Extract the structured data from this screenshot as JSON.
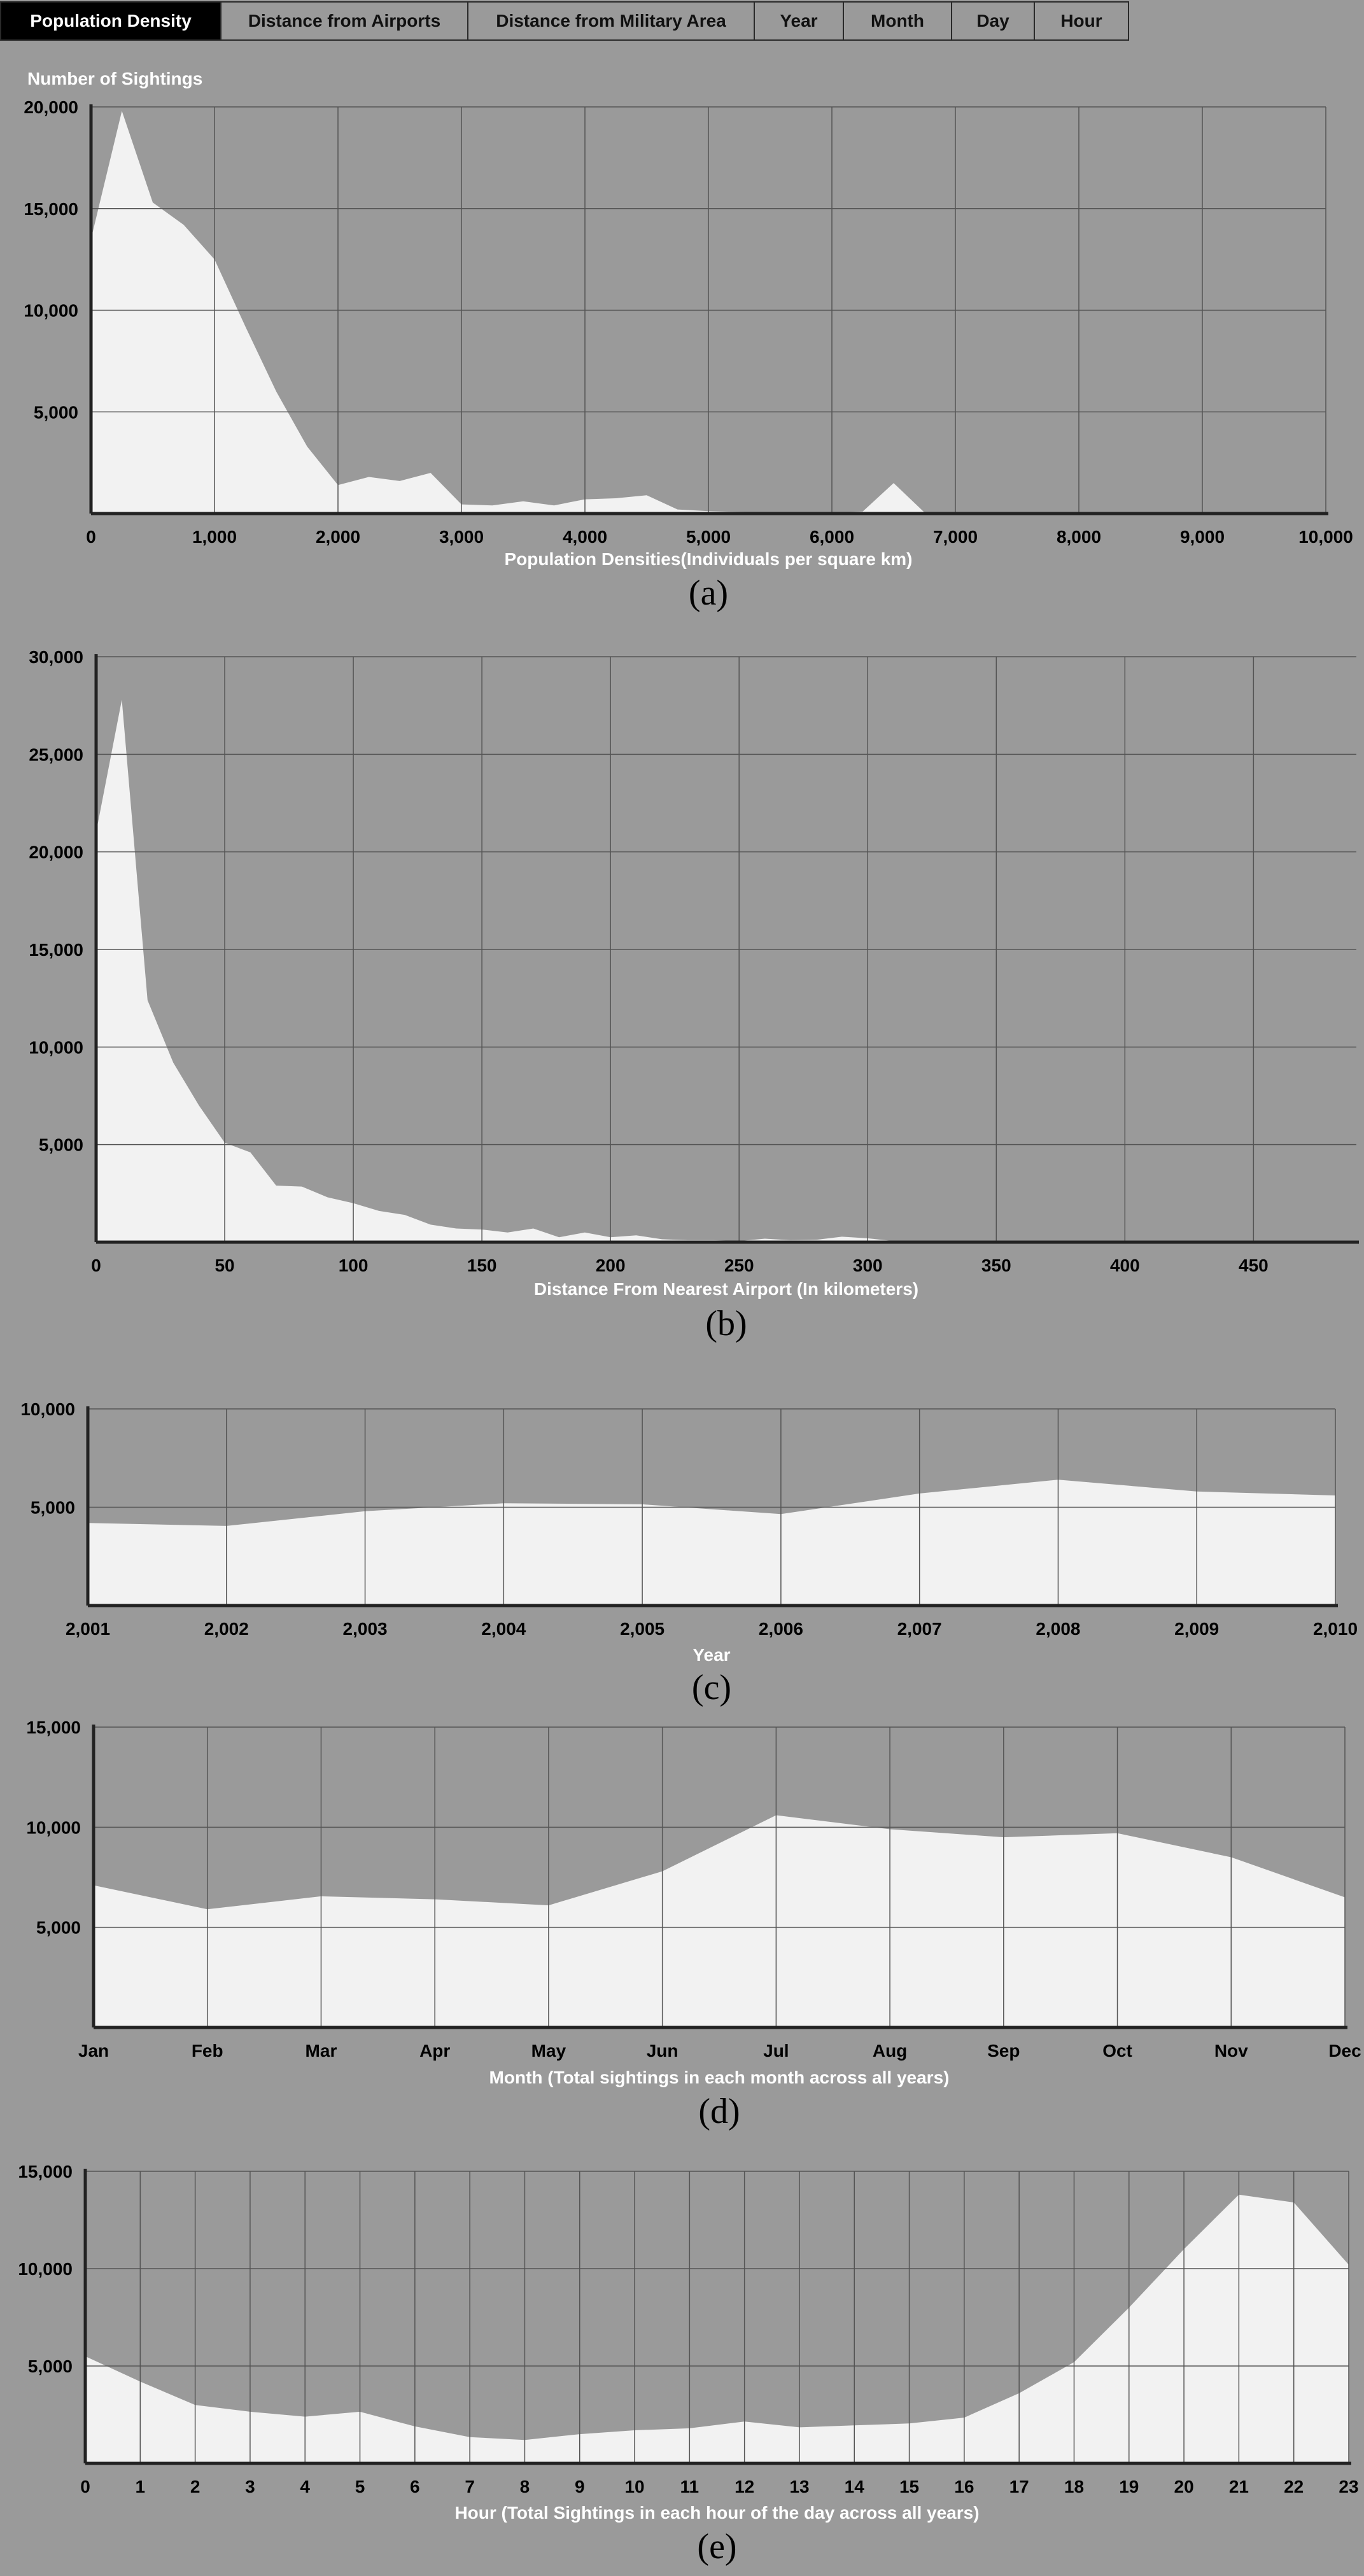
{
  "tabs": [
    {
      "label": "Population Density",
      "active": true
    },
    {
      "label": "Distance from Airports",
      "active": false
    },
    {
      "label": "Distance from Military Area",
      "active": false
    },
    {
      "label": "Year",
      "active": false
    },
    {
      "label": "Month",
      "active": false
    },
    {
      "label": "Day",
      "active": false
    },
    {
      "label": "Hour",
      "active": false
    }
  ],
  "colors": {
    "background": "#9a9a9a",
    "area_fill": "#f2f2f2",
    "grid": "#555555",
    "axis": "#222222",
    "active_tab": "#000000"
  },
  "chart_data": [
    {
      "type": "area",
      "caption": "(a)",
      "title": "",
      "ylabel": "Number of Sightings",
      "xlabel": "Population Densities(Individuals per square km)",
      "xlim": [
        0,
        10000
      ],
      "ylim": [
        0,
        20000
      ],
      "xticks": [
        0,
        1000,
        2000,
        3000,
        4000,
        5000,
        6000,
        7000,
        8000,
        9000,
        10000
      ],
      "xtick_labels": [
        "0",
        "1,000",
        "2,000",
        "3,000",
        "4,000",
        "5,000",
        "6,000",
        "7,000",
        "8,000",
        "9,000",
        "10,000"
      ],
      "yticks": [
        5000,
        10000,
        15000,
        20000
      ],
      "ytick_labels": [
        "5,000",
        "10,000",
        "15,000",
        "20,000"
      ],
      "x": [
        0,
        250,
        500,
        750,
        1000,
        1250,
        1500,
        1750,
        2000,
        2250,
        2500,
        2750,
        3000,
        3250,
        3500,
        3750,
        4000,
        4250,
        4500,
        4750,
        5000,
        5250,
        5500,
        5750,
        6000,
        6250,
        6500,
        6750,
        7000,
        7500,
        8000,
        8500,
        9000,
        9500,
        10000
      ],
      "values": [
        13500,
        19800,
        15300,
        14200,
        12500,
        9200,
        6000,
        3300,
        1400,
        1800,
        1600,
        2000,
        450,
        400,
        600,
        400,
        700,
        750,
        900,
        200,
        120,
        80,
        60,
        50,
        40,
        100,
        1500,
        50,
        20,
        10,
        5,
        5,
        5,
        5,
        5
      ],
      "grid": true
    },
    {
      "type": "area",
      "caption": "(b)",
      "title": "",
      "ylabel": "",
      "xlabel": "Distance From Nearest Airport (In kilometers)",
      "xlim": [
        0,
        490
      ],
      "ylim": [
        0,
        30000
      ],
      "xticks": [
        0,
        50,
        100,
        150,
        200,
        250,
        300,
        350,
        400,
        450
      ],
      "xtick_labels": [
        "0",
        "50",
        "100",
        "150",
        "200",
        "250",
        "300",
        "350",
        "400",
        "450"
      ],
      "yticks": [
        5000,
        10000,
        15000,
        20000,
        25000,
        30000
      ],
      "ytick_labels": [
        "5,000",
        "10,000",
        "15,000",
        "20,000",
        "25,000",
        "30,000"
      ],
      "x": [
        0,
        10,
        20,
        30,
        40,
        50,
        60,
        70,
        80,
        90,
        100,
        110,
        120,
        130,
        140,
        150,
        160,
        170,
        180,
        190,
        200,
        210,
        220,
        230,
        240,
        250,
        260,
        270,
        280,
        290,
        300,
        310,
        320,
        330,
        340,
        350,
        400,
        450,
        490
      ],
      "values": [
        21000,
        27800,
        12400,
        9200,
        7000,
        5100,
        4600,
        2900,
        2850,
        2300,
        2000,
        1600,
        1400,
        900,
        700,
        650,
        500,
        700,
        250,
        500,
        250,
        350,
        150,
        100,
        100,
        60,
        180,
        100,
        120,
        280,
        200,
        60,
        50,
        40,
        30,
        20,
        10,
        5,
        0
      ],
      "grid": true
    },
    {
      "type": "area",
      "caption": "(c)",
      "title": "",
      "ylabel": "",
      "xlabel": "Year",
      "xlim": [
        2001,
        2010
      ],
      "ylim": [
        0,
        10000
      ],
      "xticks": [
        2001,
        2002,
        2003,
        2004,
        2005,
        2006,
        2007,
        2008,
        2009,
        2010
      ],
      "xtick_labels": [
        "2,001",
        "2,002",
        "2,003",
        "2,004",
        "2,005",
        "2,006",
        "2,007",
        "2,008",
        "2,009",
        "2,010"
      ],
      "yticks": [
        5000,
        10000
      ],
      "ytick_labels": [
        "5,000",
        "10,000"
      ],
      "x": [
        2001,
        2002,
        2003,
        2004,
        2005,
        2006,
        2007,
        2008,
        2009,
        2010
      ],
      "values": [
        4200,
        4050,
        4800,
        5200,
        5150,
        4650,
        5700,
        6400,
        5800,
        5600
      ],
      "grid": true
    },
    {
      "type": "area",
      "caption": "(d)",
      "title": "",
      "ylabel": "",
      "xlabel": "Month (Total sightings in each month across all years)",
      "xlim": [
        0,
        11
      ],
      "ylim": [
        0,
        15000
      ],
      "xticks": [
        0,
        1,
        2,
        3,
        4,
        5,
        6,
        7,
        8,
        9,
        10,
        11
      ],
      "xtick_labels": [
        "Jan",
        "Feb",
        "Mar",
        "Apr",
        "May",
        "Jun",
        "Jul",
        "Aug",
        "Sep",
        "Oct",
        "Nov",
        "Dec"
      ],
      "yticks": [
        5000,
        10000,
        15000
      ],
      "ytick_labels": [
        "5,000",
        "10,000",
        "15,000"
      ],
      "x": [
        0,
        1,
        2,
        3,
        4,
        5,
        6,
        7,
        8,
        9,
        10,
        11
      ],
      "values": [
        7100,
        5900,
        6550,
        6400,
        6100,
        7800,
        10600,
        9900,
        9500,
        9700,
        8500,
        6500
      ],
      "grid": true
    },
    {
      "type": "area",
      "caption": "(e)",
      "title": "",
      "ylabel": "",
      "xlabel": "Hour (Total Sightings in each hour of the day across all years)",
      "xlim": [
        0,
        23
      ],
      "ylim": [
        0,
        15000
      ],
      "xticks": [
        0,
        1,
        2,
        3,
        4,
        5,
        6,
        7,
        8,
        9,
        10,
        11,
        12,
        13,
        14,
        15,
        16,
        17,
        18,
        19,
        20,
        21,
        22,
        23
      ],
      "xtick_labels": [
        "0",
        "1",
        "2",
        "3",
        "4",
        "5",
        "6",
        "7",
        "8",
        "9",
        "10",
        "11",
        "12",
        "13",
        "14",
        "15",
        "16",
        "17",
        "18",
        "19",
        "20",
        "21",
        "22",
        "23"
      ],
      "yticks": [
        5000,
        10000,
        15000
      ],
      "ytick_labels": [
        "5,000",
        "10,000",
        "15,000"
      ],
      "x": [
        0,
        1,
        2,
        3,
        4,
        5,
        6,
        7,
        8,
        9,
        10,
        11,
        12,
        13,
        14,
        15,
        16,
        17,
        18,
        19,
        20,
        21,
        22,
        23
      ],
      "values": [
        5500,
        4200,
        3000,
        2650,
        2400,
        2650,
        1900,
        1350,
        1200,
        1500,
        1700,
        1800,
        2150,
        1850,
        1950,
        2050,
        2350,
        3600,
        5200,
        8000,
        11000,
        13800,
        13400,
        10200
      ],
      "grid": true
    }
  ]
}
